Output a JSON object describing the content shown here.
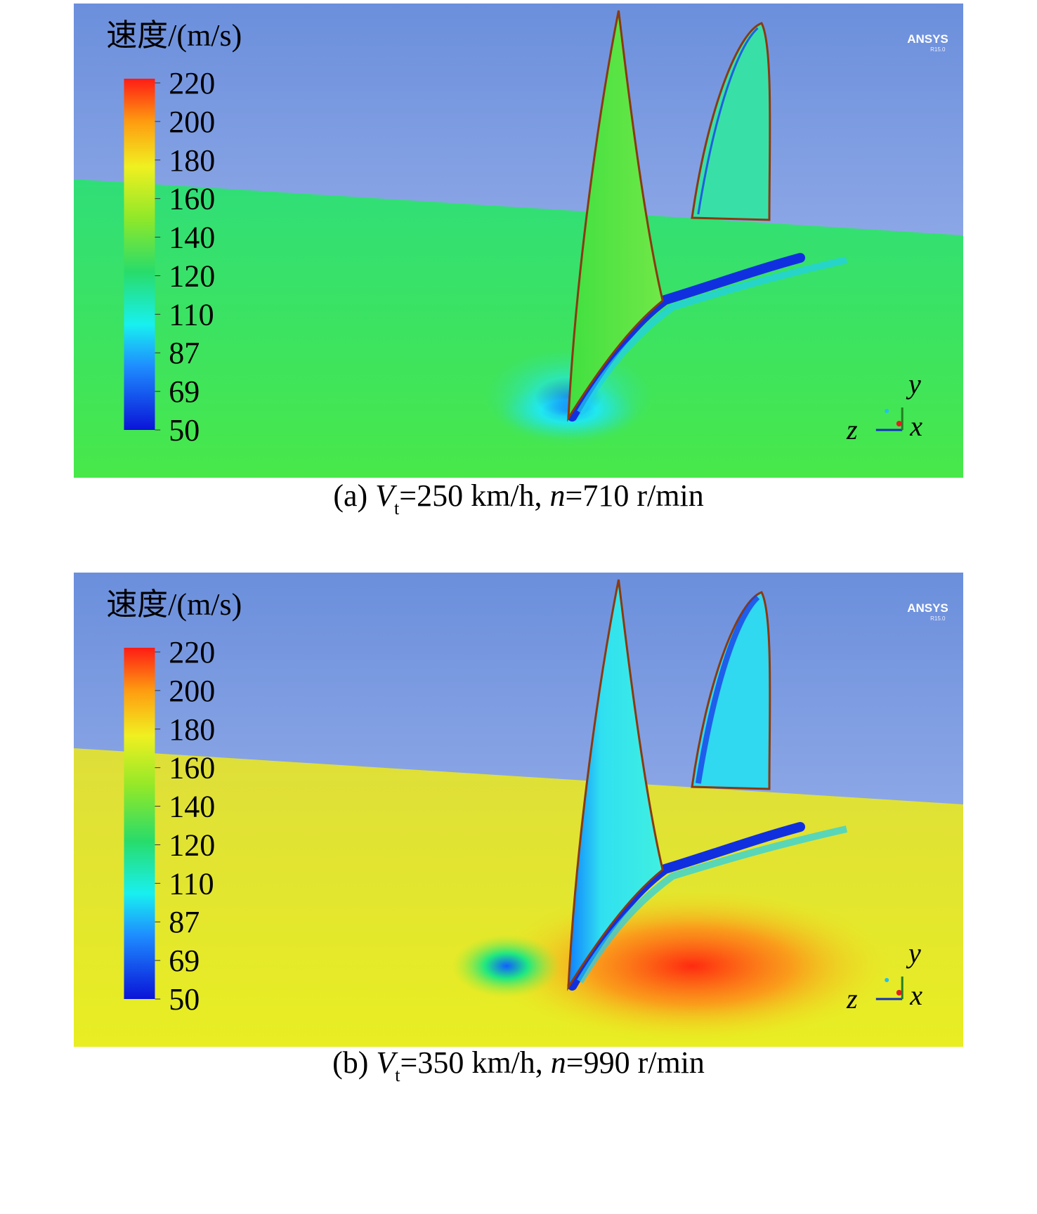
{
  "panels": [
    {
      "legend_title": "速度/(m/s)",
      "legend_ticks": [
        220,
        200,
        180,
        160,
        140,
        120,
        110,
        87,
        69,
        50
      ],
      "logo": "ANSYS",
      "logo_version": "R15.0",
      "axes": {
        "y": "y",
        "z": "z",
        "x": "x"
      },
      "caption": {
        "label": "(a)",
        "var": "V",
        "sub": "t",
        "text1": "=250 km/h, ",
        "var2": "n",
        "text2": "=710 r/min"
      }
    },
    {
      "legend_title": "速度/(m/s)",
      "legend_ticks": [
        220,
        200,
        180,
        160,
        140,
        120,
        110,
        87,
        69,
        50
      ],
      "logo": "ANSYS",
      "logo_version": "R15.0",
      "axes": {
        "y": "y",
        "z": "z",
        "x": "x"
      },
      "caption": {
        "label": "(b)",
        "var": "V",
        "sub": "t",
        "text1": "=350 km/h, ",
        "var2": "n",
        "text2": "=990 r/min"
      }
    }
  ]
}
